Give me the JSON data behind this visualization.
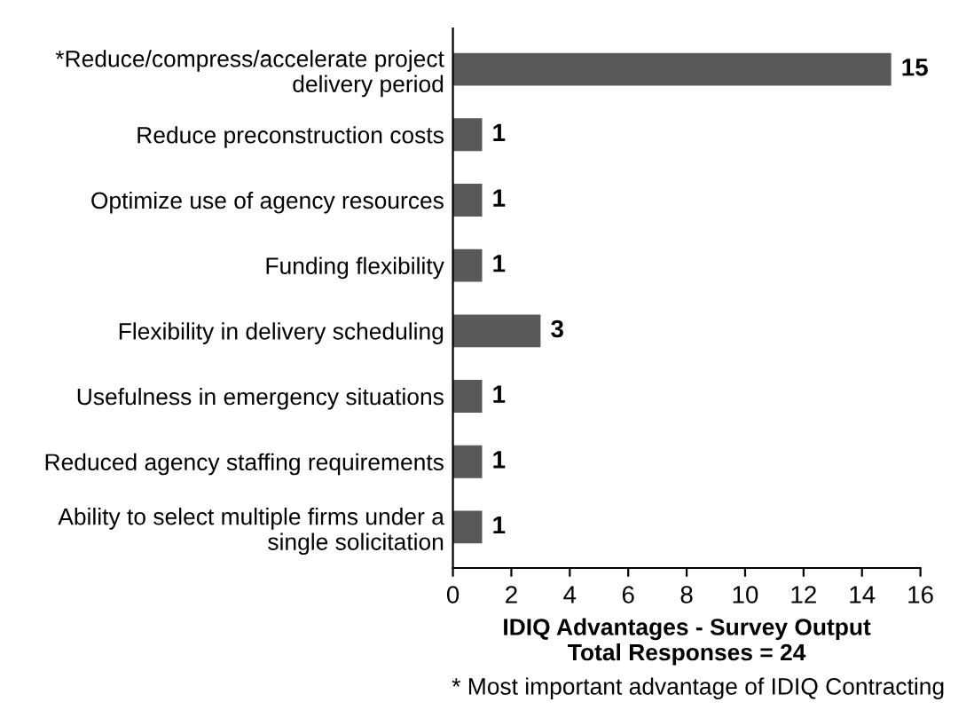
{
  "chart_data": {
    "type": "bar",
    "orientation": "horizontal",
    "categories": [
      "*Reduce/compress/accelerate project\ndelivery period",
      "Reduce preconstruction costs",
      "Optimize use of agency resources",
      "Funding flexibility",
      "Flexibility in delivery scheduling",
      "Usefulness in emergency situations",
      "Reduced agency staffing requirements",
      "Ability to select multiple firms under a\nsingle solicitation"
    ],
    "values": [
      15,
      1,
      1,
      1,
      3,
      1,
      1,
      1
    ],
    "color": "#595959",
    "xlim": [
      0,
      16
    ],
    "xticks": [
      0,
      2,
      4,
      6,
      8,
      10,
      12,
      14,
      16
    ],
    "xlabel": "IDIQ Advantages - Survey Output\nTotal Responses = 24",
    "annotations": [
      "* Most important advantage of IDIQ Contracting"
    ],
    "data_labels": true,
    "grid": false
  }
}
